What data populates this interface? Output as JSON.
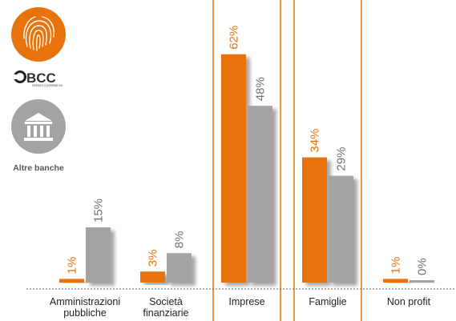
{
  "chart_data": {
    "type": "bar",
    "categories": [
      [
        "Amministrazioni",
        "pubbliche"
      ],
      [
        "Società",
        "finanziarie"
      ],
      [
        "Imprese"
      ],
      [
        "Famiglie"
      ],
      [
        "Non profit"
      ]
    ],
    "series": [
      {
        "name": "BCC",
        "color": "#e8730c",
        "values": [
          1,
          3,
          62,
          34,
          1
        ],
        "labels": [
          "1%",
          "3%",
          "62%",
          "34%",
          "1%"
        ]
      },
      {
        "name": "Altre banche",
        "color": "#a3a3a3",
        "values": [
          15,
          8,
          48,
          29,
          0
        ],
        "labels": [
          "15%",
          "8%",
          "48%",
          "29%",
          "0%"
        ]
      }
    ],
    "ylim": [
      0,
      62
    ],
    "highlighted_categories": [
      "Imprese",
      "Famiglie"
    ],
    "legend_placement": "left",
    "grid": false
  },
  "legend": {
    "bcc": {
      "icon": "fingerprint-icon",
      "logo_text": "BCC",
      "logo_subtext": "CREDITO COOPERATIVO"
    },
    "altre": {
      "icon": "bank-building-icon",
      "label": "Altre banche"
    }
  },
  "colors": {
    "orange": "#e8730c",
    "gray": "#a3a3a3",
    "highlight_border": "#e8730c"
  }
}
